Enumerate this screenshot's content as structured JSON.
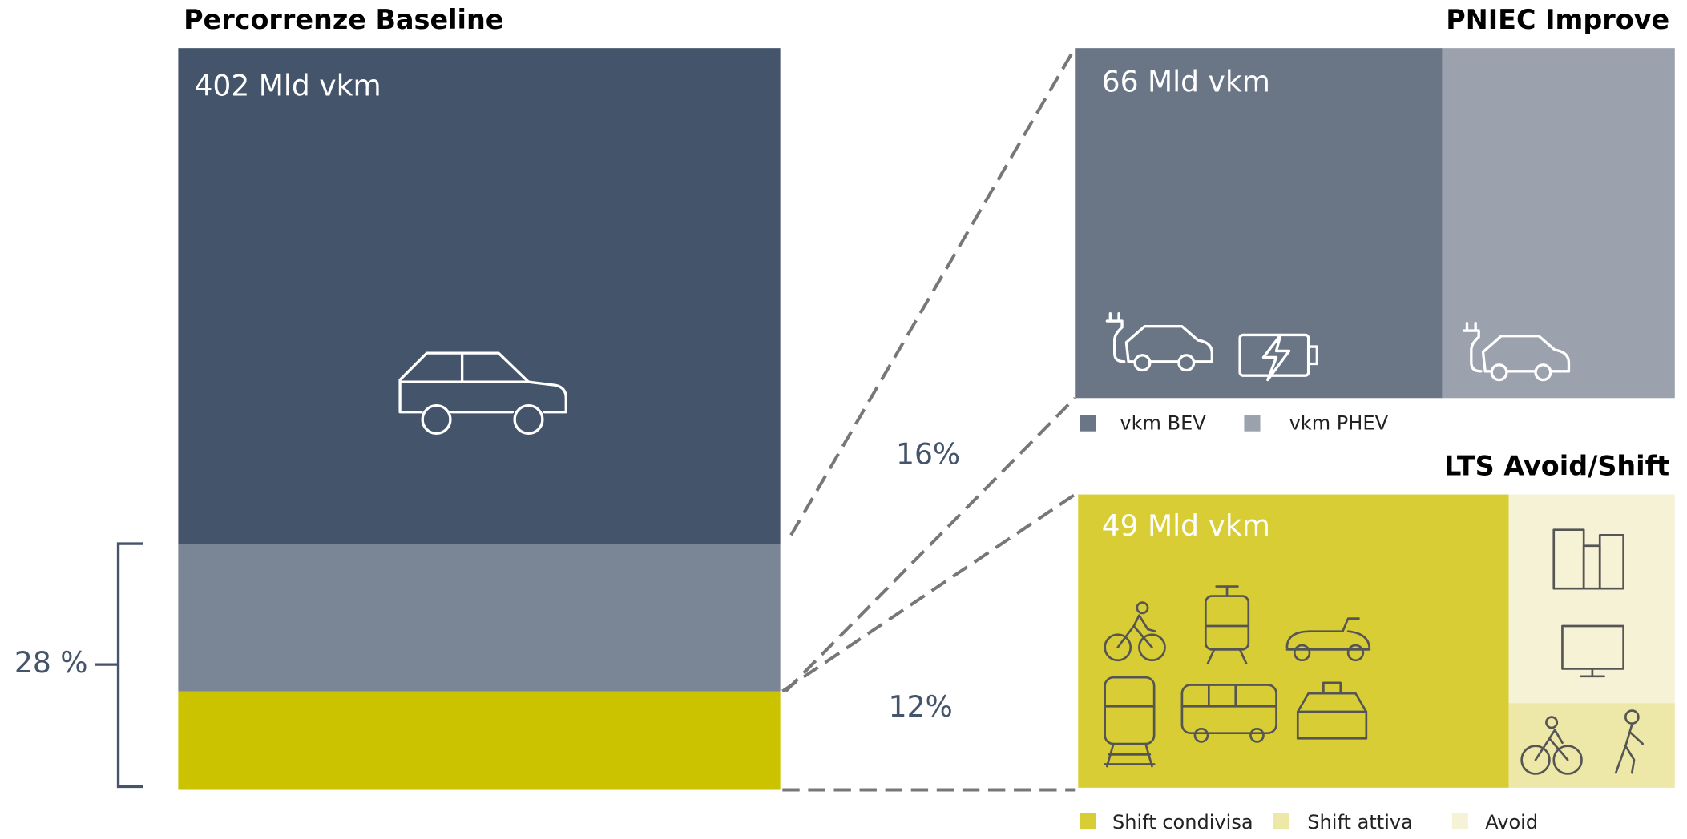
{
  "baseline": {
    "title": "Percorrenze Baseline",
    "total_label": "402 Mld vkm",
    "bracket_label": "28 %"
  },
  "pniec": {
    "title": "PNIEC Improve",
    "value_label": "66 Mld vkm",
    "share_label": "16%",
    "legend": [
      "vkm BEV",
      "vkm PHEV"
    ]
  },
  "lts": {
    "title": "LTS Avoid/Shift",
    "value_label": "49 Mld vkm",
    "share_label": "12%",
    "legend": [
      "Shift condivisa",
      "Shift attiva",
      "Avoid"
    ]
  }
}
